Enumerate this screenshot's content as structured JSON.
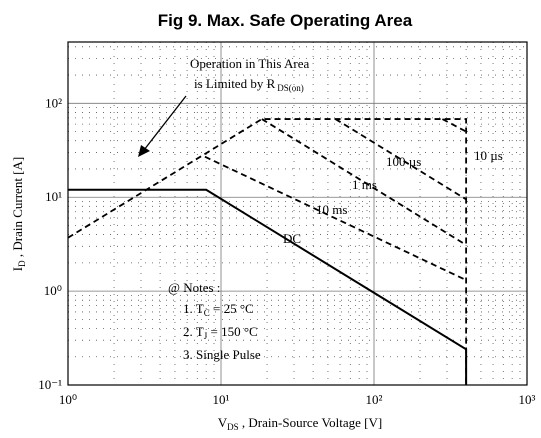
{
  "chart_data": {
    "type": "line",
    "title": "Fig 9.  Max. Safe Operating Area",
    "xlabel": {
      "main": "V",
      "sub": "DS",
      "rest": " ,  Drain-Source Voltage   [V]"
    },
    "ylabel": {
      "main": "I",
      "sub": "D",
      "rest": " ,  Drain Current   [A]"
    },
    "log_x": true,
    "log_y": true,
    "grid": true,
    "minor_grid": true,
    "xlim": [
      1,
      1000
    ],
    "ylim": [
      0.1,
      450
    ],
    "xticks": [
      {
        "value": 1,
        "label": "10⁰"
      },
      {
        "value": 10,
        "label": "10¹"
      },
      {
        "value": 100,
        "label": "10²"
      },
      {
        "value": 1000,
        "label": "10³"
      }
    ],
    "yticks": [
      {
        "value": 0.1,
        "label": "10⁻¹"
      },
      {
        "value": 1,
        "label": "10⁰"
      },
      {
        "value": 10,
        "label": "10¹"
      },
      {
        "value": 100,
        "label": "10²"
      }
    ],
    "series": [
      {
        "color": "#000000",
        "style": "dashed",
        "x": [
          1,
          18.5,
          400,
          400
        ],
        "values": [
          3.7,
          68,
          68,
          0.1
        ]
      },
      {
        "name": "10 µs",
        "color": "#000000",
        "style": "dashed",
        "x": [
          280,
          400
        ],
        "values": [
          68,
          50
        ]
      },
      {
        "name": "100 µs",
        "color": "#000000",
        "style": "dashed",
        "x": [
          56,
          400
        ],
        "values": [
          68,
          9.5
        ]
      },
      {
        "name": "1 ms",
        "color": "#000000",
        "style": "dashed",
        "x": [
          18.5,
          400
        ],
        "values": [
          68,
          3.1
        ]
      },
      {
        "name": "10 ms",
        "color": "#000000",
        "style": "dashed",
        "x": [
          7.85,
          400
        ],
        "values": [
          27,
          1.31
        ]
      },
      {
        "name": "DC",
        "color": "#000000",
        "style": "solid",
        "x": [
          1,
          8,
          400,
          400
        ],
        "values": [
          12,
          12,
          0.24,
          0.1
        ]
      }
    ],
    "annotation": {
      "line1": "Operation in This Area",
      "line2": "is Limited by R",
      "sub": "DS(on)"
    },
    "notes": {
      "heading": "@ Notes :",
      "items": [
        {
          "main": "1. T",
          "sub": "C",
          "rest": " = 25 °C"
        },
        {
          "main": "2. T",
          "sub": "J",
          "rest": " = 150 °C"
        },
        {
          "main": "3. Single Pulse"
        }
      ]
    }
  }
}
